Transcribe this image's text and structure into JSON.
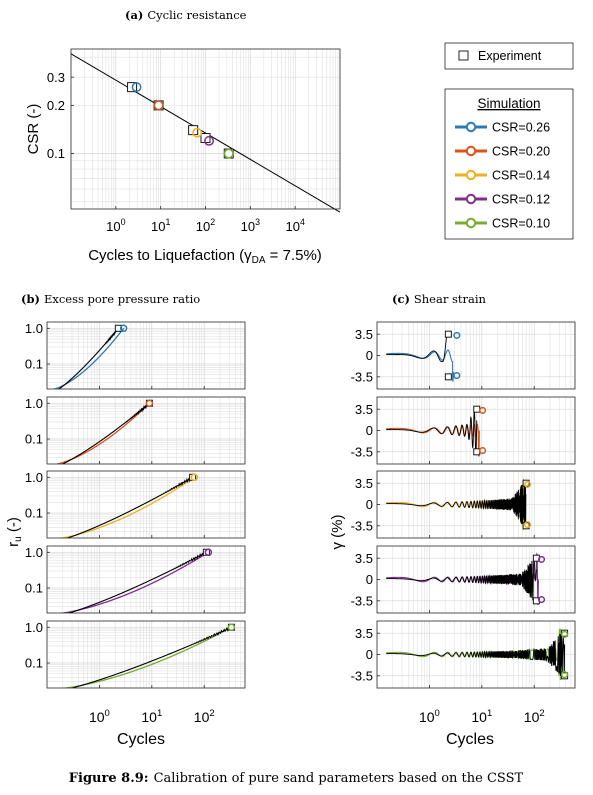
{
  "figure": {
    "caption_label": "Figure 8.9:",
    "caption_text": "Calibration of pure sand parameters based on the CSST"
  },
  "colors": {
    "csr026": "#2a7ab8",
    "csr020": "#d95319",
    "csr014": "#edb120",
    "csr012": "#7e2f8e",
    "csr010": "#77ac30",
    "experiment": "#000000",
    "grid": "#d6d6d6"
  },
  "legend_experiment": {
    "marker": "square-marker",
    "label": "Experiment"
  },
  "legend_simulation": {
    "title": "Simulation",
    "entries": [
      {
        "label": "CSR=0.26",
        "color": "#2a7ab8"
      },
      {
        "label": "CSR=0.20",
        "color": "#d95319"
      },
      {
        "label": "CSR=0.14",
        "color": "#edb120"
      },
      {
        "label": "CSR=0.12",
        "color": "#7e2f8e"
      },
      {
        "label": "CSR=0.10",
        "color": "#77ac30"
      }
    ]
  },
  "chart_data": [
    {
      "id": "a",
      "type": "scatter",
      "panel_label": "(a)",
      "title": "Cyclic resistance",
      "xlabel": "Cycles to Liquefaction",
      "xlabel_symbol": "γ",
      "xlabel_subscript": "DA",
      "xlabel_suffix": " = 7.5%)",
      "ylabel": "CSR (-)",
      "x_scale": "log",
      "y_scale": "log",
      "xlim": [
        0.1,
        100000
      ],
      "ylim": [
        0.045,
        0.45
      ],
      "x_ticks": [
        {
          "v": 1,
          "e": "0"
        },
        {
          "v": 10,
          "e": "1"
        },
        {
          "v": 100,
          "e": "2"
        },
        {
          "v": 1000,
          "e": "3"
        },
        {
          "v": 10000,
          "e": "4"
        }
      ],
      "y_ticks": [
        {
          "v": 0.1,
          "label": "0.1"
        },
        {
          "v": 0.2,
          "label": "0.2"
        },
        {
          "v": 0.3,
          "label": "0.3"
        }
      ],
      "grid": true,
      "fit_line": {
        "x": [
          0.1,
          100000
        ],
        "y": [
          0.42,
          0.043
        ]
      },
      "experiment": [
        {
          "x": 2.3,
          "y": 0.26
        },
        {
          "x": 9,
          "y": 0.2
        },
        {
          "x": 53,
          "y": 0.14
        },
        {
          "x": 100,
          "y": 0.125
        },
        {
          "x": 330,
          "y": 0.1
        }
      ],
      "simulation": [
        {
          "x": 2.9,
          "y": 0.26,
          "color": "#2a7ab8"
        },
        {
          "x": 9,
          "y": 0.2,
          "color": "#d95319"
        },
        {
          "x": 65,
          "y": 0.135,
          "color": "#edb120"
        },
        {
          "x": 120,
          "y": 0.12,
          "color": "#7e2f8e"
        },
        {
          "x": 330,
          "y": 0.1,
          "color": "#77ac30"
        }
      ]
    },
    {
      "id": "b",
      "type": "line",
      "panel_label": "(b)",
      "title": "Excess pore pressure ratio",
      "xlabel": "Cycles",
      "ylabel_main": "r",
      "ylabel_sub": "u",
      "ylabel_tail": " (-)",
      "x_scale": "log",
      "y_scale": "log",
      "xlim": [
        0.1,
        600
      ],
      "ylim": [
        0.02,
        1.5
      ],
      "x_ticks": [
        {
          "v": 1,
          "e": "0"
        },
        {
          "v": 10,
          "e": "1"
        },
        {
          "v": 100,
          "e": "2"
        }
      ],
      "y_ticks": [
        {
          "v": 0.1,
          "label": "0.1"
        },
        {
          "v": 1,
          "label": "1.0"
        }
      ],
      "grid": true,
      "series": [
        {
          "color": "#2a7ab8",
          "n_liq": 2.9,
          "exp_liq": 2.3
        },
        {
          "color": "#d95319",
          "n_liq": 9,
          "exp_liq": 9
        },
        {
          "color": "#edb120",
          "n_liq": 65,
          "exp_liq": 60
        },
        {
          "color": "#7e2f8e",
          "n_liq": 120,
          "exp_liq": 110
        },
        {
          "color": "#77ac30",
          "n_liq": 330,
          "exp_liq": 330
        }
      ]
    },
    {
      "id": "c",
      "type": "line",
      "panel_label": "(c)",
      "title": "Shear strain",
      "xlabel": "Cycles",
      "ylabel": "γ (%)",
      "x_scale": "log",
      "y_scale": "linear",
      "xlim": [
        0.1,
        600
      ],
      "ylim": [
        -5.5,
        5.5
      ],
      "x_ticks": [
        {
          "v": 1,
          "e": "0"
        },
        {
          "v": 10,
          "e": "1"
        },
        {
          "v": 100,
          "e": "2"
        }
      ],
      "y_ticks": [
        {
          "v": 3.5,
          "label": "3.5"
        },
        {
          "v": 0,
          "label": "0"
        },
        {
          "v": -3.5,
          "label": "-3.5"
        }
      ],
      "grid": true,
      "series": [
        {
          "color": "#2a7ab8",
          "n_liq": 2.9,
          "exp_liq": 2.3
        },
        {
          "color": "#d95319",
          "n_liq": 9,
          "exp_liq": 8
        },
        {
          "color": "#edb120",
          "n_liq": 65,
          "exp_liq": 70
        },
        {
          "color": "#7e2f8e",
          "n_liq": 120,
          "exp_liq": 110
        },
        {
          "color": "#77ac30",
          "n_liq": 330,
          "exp_liq": 380
        }
      ]
    }
  ]
}
